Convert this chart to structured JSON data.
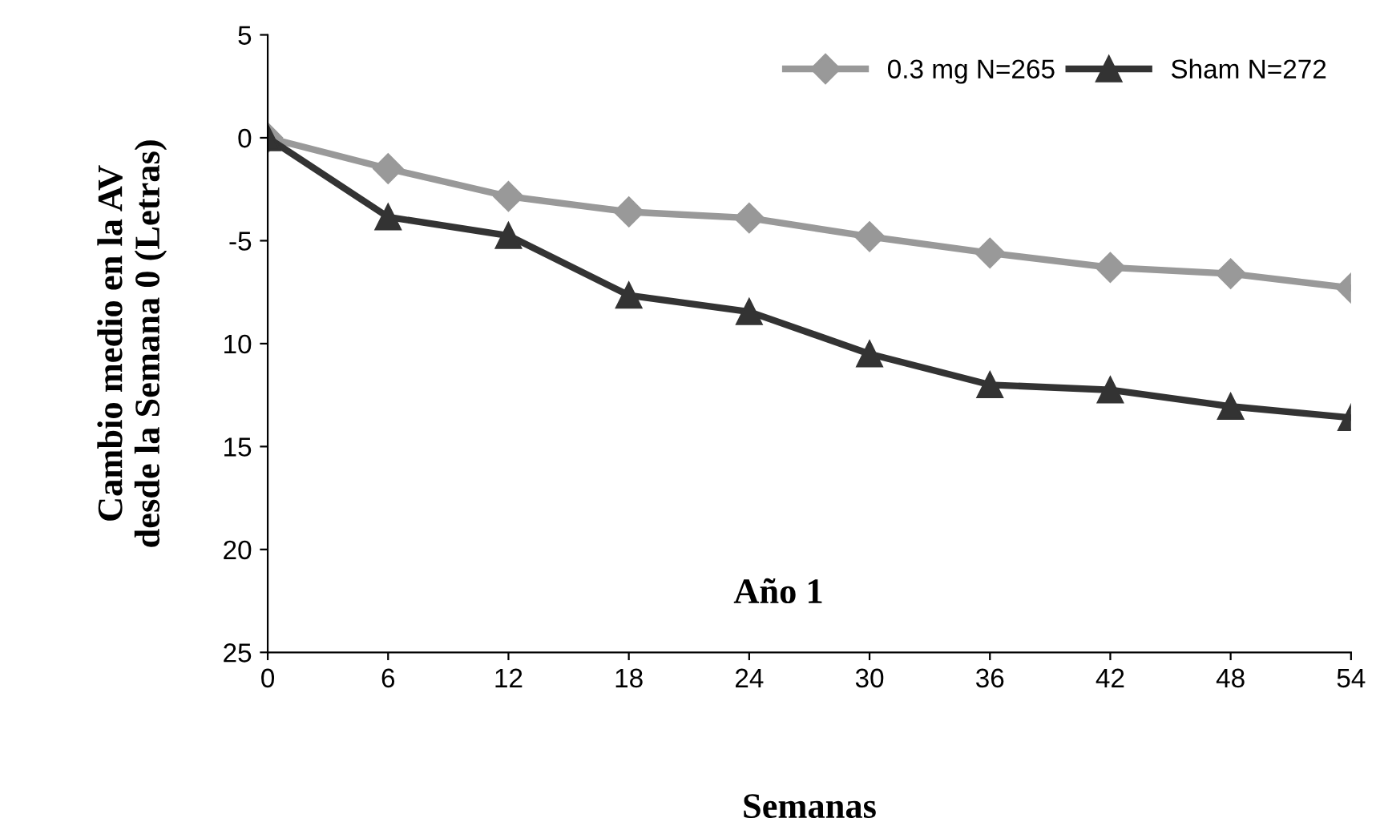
{
  "chart_data": {
    "type": "line",
    "xlabel": "Semanas",
    "ylabel": "Cambio medio en la AV\ndesde la Semana 0 (Letras)",
    "annotations": [
      "Año 1"
    ],
    "x": [
      0,
      6,
      12,
      18,
      24,
      30,
      36,
      42,
      48,
      54
    ],
    "series": [
      {
        "name": "0.3 mg N=265",
        "color": "#999999",
        "marker": "diamond",
        "values": [
          0,
          -1.5,
          -2.85,
          -3.6,
          -3.9,
          -4.8,
          -5.6,
          -6.3,
          -6.6,
          -7.3
        ]
      },
      {
        "name": "Sham N=272",
        "color": "#333333",
        "marker": "triangle",
        "values": [
          0,
          -3.85,
          -4.75,
          -7.65,
          -8.45,
          -10.5,
          -12.0,
          -12.25,
          -13.05,
          -13.6
        ]
      }
    ],
    "xlim": [
      0,
      54
    ],
    "xticks": [
      0,
      6,
      12,
      18,
      24,
      30,
      36,
      42,
      48,
      54
    ],
    "ylim": [
      -25,
      5
    ],
    "yticks": [
      5,
      0,
      -5,
      {
        "value": -10,
        "label": "10"
      },
      {
        "value": -15,
        "label": "15"
      },
      {
        "value": -20,
        "label": "20"
      },
      {
        "value": -25,
        "label": "25"
      }
    ],
    "legend": "top right",
    "grid": false,
    "line_style": "solid"
  }
}
